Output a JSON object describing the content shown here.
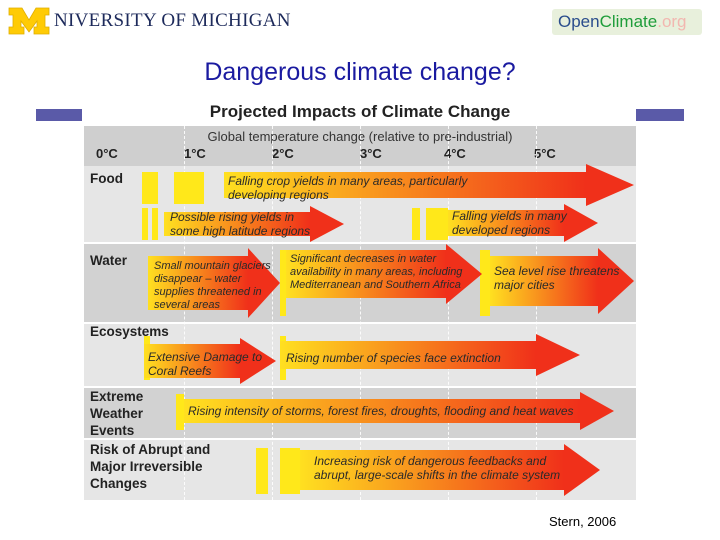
{
  "header": {
    "university_logo_text": "NIVERSITY OF MICHIGAN",
    "openclimate_logo": {
      "open": "Open",
      "climate": "Climate",
      "org": ".org"
    }
  },
  "slide": {
    "title": "Dangerous climate change?",
    "credit": "Stern, 2006"
  },
  "figure": {
    "title": "Projected Impacts of Climate Change",
    "subtitle": "Global temperature change (relative to pre-industrial)",
    "ticks": [
      "0°C",
      "1°C",
      "2°C",
      "3°C",
      "4°C",
      "5°C"
    ],
    "categories": {
      "food": "Food",
      "water": "Water",
      "ecosystems": "Ecosystems",
      "extreme": "Extreme Weather Events",
      "abrupt": "Risk of Abrupt and Major Irreversible Changes"
    },
    "labels": {
      "food_falling": "Falling crop yields in many areas, particularly developing regions",
      "food_rising": "Possible rising yields in some high latitude regions",
      "food_falling_developed": "Falling yields in many developed regions",
      "water_glaciers": "Small mountain glaciers disappear – water supplies threatened in several areas",
      "water_decreases": "Significant decreases in water availability in many areas, including Mediterranean and Southern Africa",
      "water_sea_level": "Sea level rise threatens major cities",
      "eco_coral": "Extensive Damage to Coral Reefs",
      "eco_extinction": "Rising number of species face extinction",
      "extreme_storms": "Rising intensity of storms, forest fires, droughts, flooding and heat waves",
      "abrupt_risk": "Increasing risk of dangerous feedbacks and abrupt, large-scale shifts in the climate system"
    },
    "colors": {
      "band_gray": "#cfcfcf",
      "band_light": "#e6e6e6",
      "yellow": "#ffe81a",
      "arrow_start": "#ffe020",
      "arrow_end": "#f0301a",
      "title_blue": "#1a1aa0"
    }
  }
}
